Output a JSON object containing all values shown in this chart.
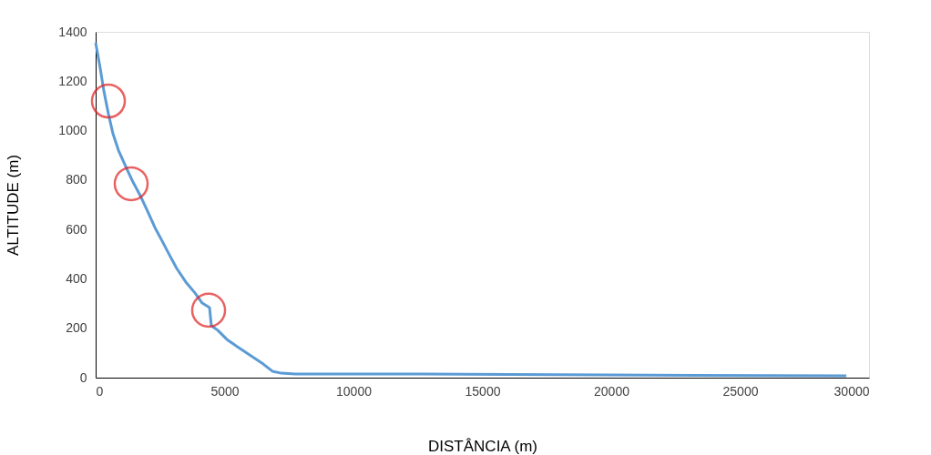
{
  "chart_data": {
    "type": "line",
    "xlabel": "DISTÂNCIA (m)",
    "ylabel": "ALTITUDE (m)",
    "xlim": [
      0,
      30000
    ],
    "xticks": [
      0,
      5000,
      10000,
      15000,
      20000,
      25000,
      30000
    ],
    "ylim": [
      0,
      1400
    ],
    "yticks": [
      0,
      200,
      400,
      600,
      800,
      1000,
      1200,
      1400
    ],
    "grid": false,
    "series": [
      {
        "color": "#5b9bd5",
        "x": [
          0,
          177,
          318,
          495,
          671,
          883,
          1201,
          1449,
          1731,
          2014,
          2297,
          2580,
          2862,
          3145,
          3498,
          3852,
          4134,
          4417,
          4488,
          4735,
          5088,
          5442,
          5972,
          6502,
          6855,
          7208,
          7739,
          12686,
          19753,
          29117
        ],
        "values": [
          1356,
          1253,
          1161,
          1068,
          988,
          921,
          847,
          792,
          737,
          674,
          608,
          553,
          497,
          442,
          387,
          343,
          302,
          284,
          210,
          192,
          155,
          129,
          92,
          55,
          26,
          18,
          15,
          15,
          11,
          7
        ]
      },
      {
        "type": "scatter",
        "marker": "circle",
        "color": "#e02020",
        "x": [
          495,
          1378,
          4382
        ],
        "values": [
          1120,
          785,
          273
        ]
      }
    ]
  }
}
